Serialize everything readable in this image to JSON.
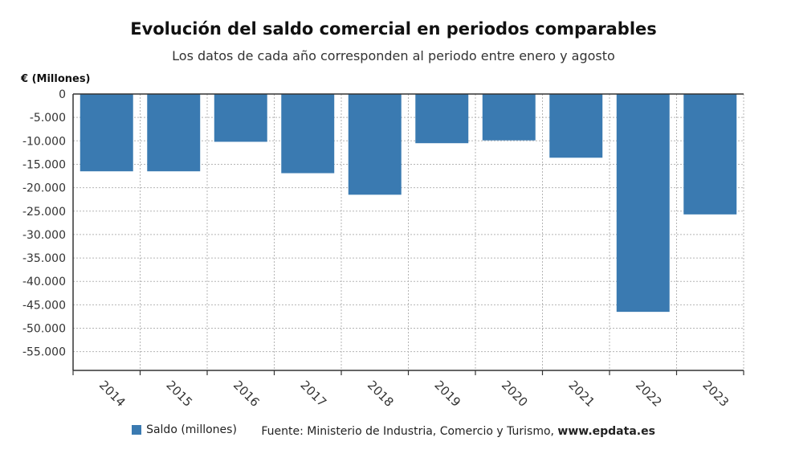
{
  "header": {
    "title": "Evolución del saldo comercial en periodos comparables",
    "subtitle": "Los datos de cada año corresponden al periodo entre enero y agosto"
  },
  "footer": {
    "legend_label": "Saldo (millones)",
    "source_prefix": "Fuente: Ministerio de Industria, Comercio y Turismo, ",
    "source_site": "www.epdata.es"
  },
  "colors": {
    "bar": "#3a7ab1",
    "grid": "#b5b5b5",
    "axis": "#333333"
  },
  "chart_data": {
    "type": "bar",
    "title": "Evolución del saldo comercial en periodos comparables",
    "subtitle": "Los datos de cada año corresponden al periodo entre enero y agosto",
    "ylabel": "€ (Millones)",
    "xlabel": "",
    "categories": [
      "2014",
      "2015",
      "2016",
      "2017",
      "2018",
      "2019",
      "2020",
      "2021",
      "2022",
      "2023"
    ],
    "series": [
      {
        "name": "Saldo (millones)",
        "values": [
          -16500,
          -16500,
          -10200,
          -16900,
          -21500,
          -10500,
          -9900,
          -13600,
          -46500,
          -25700
        ]
      }
    ],
    "ylim": [
      -59000,
      0
    ],
    "yticks": [
      0,
      -5000,
      -10000,
      -15000,
      -20000,
      -25000,
      -30000,
      -35000,
      -40000,
      -45000,
      -50000,
      -55000
    ],
    "ytick_labels": [
      "0",
      "-5.000",
      "-10.000",
      "-15.000",
      "-20.000",
      "-25.000",
      "-30.000",
      "-35.000",
      "-40.000",
      "-45.000",
      "-50.000",
      "-55.000"
    ],
    "grid": true,
    "legend": "bottom"
  }
}
